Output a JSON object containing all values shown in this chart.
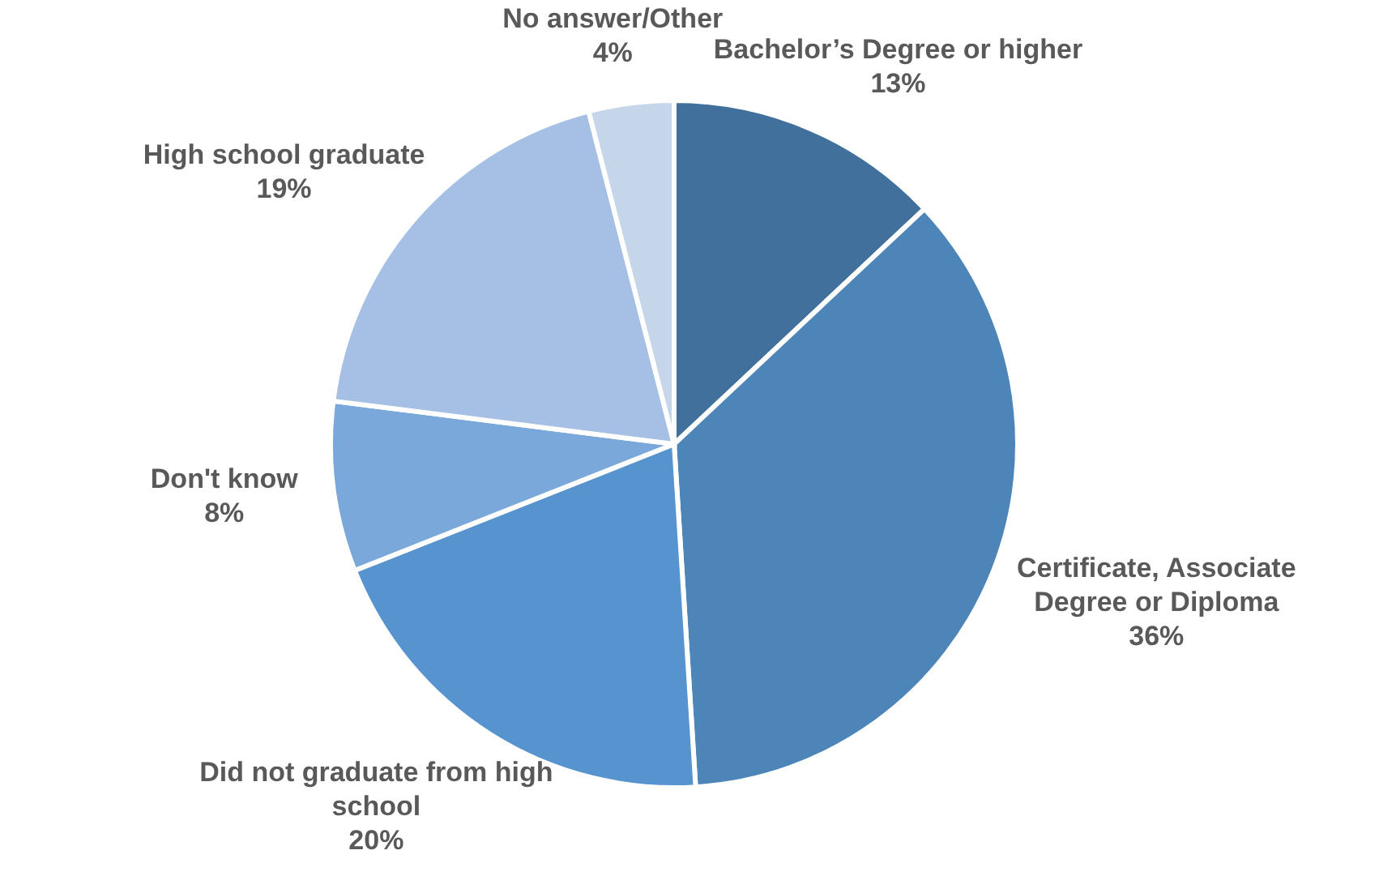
{
  "chart_data": {
    "type": "pie",
    "categories": [
      "Bachelor’s Degree or higher",
      "Certificate, Associate Degree or Diploma",
      "Did not graduate from high school",
      "Don't know",
      "High school graduate",
      "No answer/Other"
    ],
    "values": [
      13,
      36,
      20,
      8,
      19,
      4
    ],
    "colors": [
      "#41709c",
      "#4e85b8",
      "#5794cf",
      "#7aa8da",
      "#a5c0e4",
      "#c5d5ea"
    ],
    "value_labels": [
      "13%",
      "36%",
      "20%",
      "8%",
      "19%",
      "4%"
    ]
  }
}
